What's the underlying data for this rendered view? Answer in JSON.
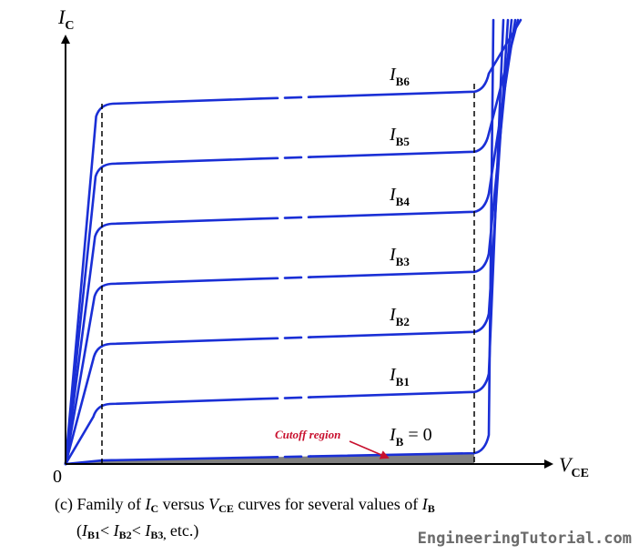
{
  "chart_data": {
    "type": "line",
    "y_axis_label": {
      "main": "I",
      "sub": "C"
    },
    "x_axis_label": {
      "main": "V",
      "sub": "CE"
    },
    "origin_label": "0",
    "series": [
      {
        "name_main": "I",
        "name_sub": "B",
        "name_suffix": " = 0",
        "level": 0.06,
        "end_level": 0.18
      },
      {
        "name_main": "I",
        "name_sub": "B1",
        "name_suffix": "",
        "level": 1.0,
        "end_level": 1.2
      },
      {
        "name_main": "I",
        "name_sub": "B2",
        "name_suffix": "",
        "level": 2.0,
        "end_level": 2.2
      },
      {
        "name_main": "I",
        "name_sub": "B3",
        "name_suffix": "",
        "level": 3.0,
        "end_level": 3.2
      },
      {
        "name_main": "I",
        "name_sub": "B4",
        "name_suffix": "",
        "level": 4.0,
        "end_level": 4.2
      },
      {
        "name_main": "I",
        "name_sub": "B5",
        "name_suffix": "",
        "level": 5.0,
        "end_level": 5.2
      },
      {
        "name_main": "I",
        "name_sub": "B6",
        "name_suffix": "",
        "level": 6.0,
        "end_level": 6.2
      }
    ],
    "regions": {
      "cutoff_label": "Cutoff region"
    },
    "colors": {
      "curve": "#1a2fd6",
      "cutoff_fill": "#808080",
      "cutoff_label": "#c8102e",
      "axis": "#000000"
    }
  },
  "caption": {
    "prefix": "(c) Family of ",
    "ic_main": "I",
    "ic_sub": "C",
    "versus": " versus ",
    "vce_main": "V",
    "vce_sub": "CE",
    "mid": " curves for several values of ",
    "ib_main": "I",
    "ib_sub": "B",
    "line2_open": "(",
    "ib1_main": "I",
    "ib1_sub": "B1",
    "lt1": "< ",
    "ib2_main": "I",
    "ib2_sub": "B2",
    "lt2": "< ",
    "ib3_main": "I",
    "ib3_sub": "B3,",
    "line2_close": " etc.)"
  },
  "watermark": "EngineeringTutorial.com"
}
